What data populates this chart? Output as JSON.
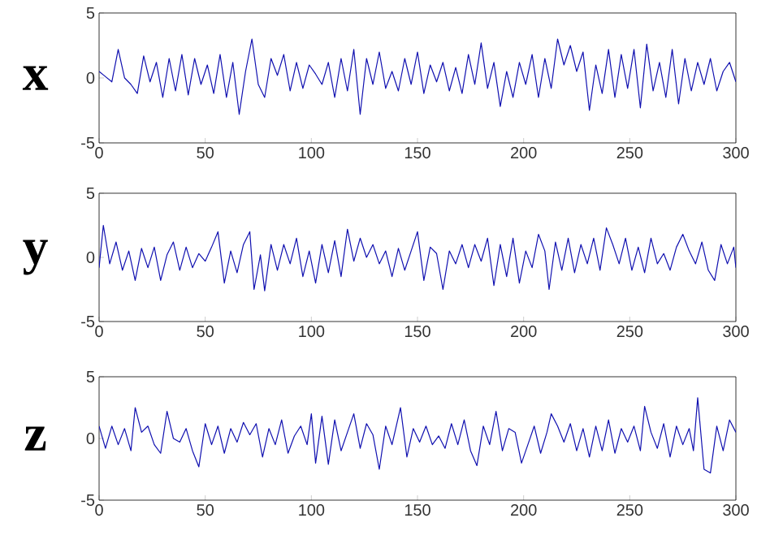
{
  "chart_data": [
    {
      "type": "line",
      "ylabel": "x",
      "color": "#1010b0",
      "xlim": [
        0,
        300
      ],
      "ylim": [
        -5,
        5
      ],
      "xticks": [
        0,
        50,
        100,
        150,
        200,
        250,
        300
      ],
      "yticks": [
        -5,
        0,
        5
      ],
      "x": [
        0,
        3,
        6,
        9,
        12,
        15,
        18,
        21,
        24,
        27,
        30,
        33,
        36,
        39,
        42,
        45,
        48,
        51,
        54,
        57,
        60,
        63,
        66,
        69,
        72,
        75,
        78,
        81,
        84,
        87,
        90,
        93,
        96,
        99,
        102,
        105,
        108,
        111,
        114,
        117,
        120,
        123,
        126,
        129,
        132,
        135,
        138,
        141,
        144,
        147,
        150,
        153,
        156,
        159,
        162,
        165,
        168,
        171,
        174,
        177,
        180,
        183,
        186,
        189,
        192,
        195,
        198,
        201,
        204,
        207,
        210,
        213,
        216,
        219,
        222,
        225,
        228,
        231,
        234,
        237,
        240,
        243,
        246,
        249,
        252,
        255,
        258,
        261,
        264,
        267,
        270,
        273,
        276,
        279,
        282,
        285,
        288,
        291,
        294,
        297,
        300
      ],
      "values": [
        0.5,
        0.1,
        -0.3,
        2.2,
        0,
        -0.5,
        -1.2,
        1.7,
        -0.3,
        1.2,
        -1.5,
        1.5,
        -1,
        1.8,
        -1.3,
        1.5,
        -0.5,
        1,
        -1.2,
        1.8,
        -1.5,
        1.2,
        -2.8,
        0.5,
        3,
        -0.5,
        -1.5,
        1.5,
        0.2,
        1.8,
        -1,
        1.2,
        -0.8,
        1,
        0.3,
        -0.5,
        1.2,
        -1.5,
        1.5,
        -1,
        2.2,
        -2.8,
        1.5,
        -0.5,
        2,
        -0.8,
        0.5,
        -1,
        1.5,
        -0.5,
        2,
        -1.2,
        1,
        -0.3,
        1.2,
        -1,
        0.8,
        -1.2,
        1.8,
        -0.5,
        2.7,
        -0.8,
        1.2,
        -2.2,
        0.5,
        -1.5,
        1.2,
        -0.5,
        1.8,
        -1.5,
        1.5,
        -0.8,
        3,
        1,
        2.5,
        0.5,
        2,
        -2.5,
        1,
        -1.2,
        2.2,
        -1.5,
        1.8,
        -0.8,
        2.2,
        -2.3,
        2.6,
        -1,
        1.2,
        -1.5,
        2.2,
        -2,
        1.5,
        -1,
        1.2,
        -0.5,
        1.5,
        -1,
        0.5,
        1.2,
        -0.3
      ]
    },
    {
      "type": "line",
      "ylabel": "y",
      "color": "#1010b0",
      "xlim": [
        0,
        300
      ],
      "ylim": [
        -5,
        5
      ],
      "xticks": [
        0,
        50,
        100,
        150,
        200,
        250,
        300
      ],
      "yticks": [
        -5,
        0,
        5
      ],
      "x": [
        0,
        2,
        5,
        8,
        11,
        14,
        17,
        20,
        23,
        26,
        29,
        32,
        35,
        38,
        41,
        44,
        47,
        50,
        53,
        56,
        59,
        62,
        65,
        68,
        71,
        73,
        76,
        78,
        81,
        84,
        87,
        90,
        93,
        96,
        99,
        102,
        105,
        108,
        111,
        114,
        117,
        120,
        123,
        126,
        129,
        132,
        135,
        138,
        141,
        144,
        147,
        150,
        153,
        156,
        159,
        162,
        165,
        168,
        171,
        174,
        177,
        180,
        183,
        186,
        189,
        192,
        195,
        198,
        201,
        204,
        207,
        210,
        212,
        215,
        218,
        221,
        224,
        227,
        230,
        233,
        236,
        239,
        242,
        245,
        248,
        251,
        254,
        257,
        260,
        263,
        266,
        269,
        272,
        275,
        278,
        281,
        284,
        287,
        290,
        293,
        296,
        299,
        300
      ],
      "values": [
        -0.8,
        2.5,
        -0.5,
        1.2,
        -1,
        0.5,
        -1.8,
        0.7,
        -0.8,
        0.8,
        -1.8,
        0.2,
        1.2,
        -1,
        0.8,
        -0.8,
        0.3,
        -0.3,
        0.8,
        2,
        -2,
        0.5,
        -1.2,
        1,
        2,
        -2.5,
        0.2,
        -2.6,
        1,
        -1,
        1,
        -0.5,
        1.5,
        -1.5,
        0.5,
        -2,
        1,
        -1.2,
        1.3,
        -1.5,
        2.2,
        -0.3,
        1.5,
        0,
        1,
        -0.5,
        0.5,
        -1.5,
        0.7,
        -1,
        0.5,
        2,
        -1.8,
        0.8,
        0.3,
        -2.5,
        0.5,
        -0.5,
        1,
        -0.8,
        1,
        -0.3,
        1.5,
        -2.2,
        1,
        -1.5,
        1.5,
        -2,
        0.5,
        -0.8,
        1.8,
        0.5,
        -2.5,
        1.2,
        -1,
        1.5,
        -1.2,
        1,
        -0.5,
        1.5,
        -1,
        2.3,
        1,
        -0.5,
        1.5,
        -1,
        0.8,
        -1.2,
        1.5,
        -0.5,
        0.3,
        -1,
        0.8,
        1.8,
        0.5,
        -0.5,
        1.2,
        -1,
        -1.8,
        1,
        -0.5,
        0.8,
        -0.8
      ]
    },
    {
      "type": "line",
      "ylabel": "z",
      "color": "#1010b0",
      "xlim": [
        0,
        300
      ],
      "ylim": [
        -5,
        5
      ],
      "xticks": [
        0,
        50,
        100,
        150,
        200,
        250,
        300
      ],
      "yticks": [
        -5,
        0,
        5
      ],
      "x": [
        0,
        3,
        6,
        9,
        12,
        15,
        17,
        20,
        23,
        26,
        29,
        32,
        35,
        38,
        41,
        44,
        47,
        50,
        53,
        56,
        59,
        62,
        65,
        68,
        71,
        74,
        77,
        80,
        83,
        86,
        89,
        92,
        95,
        98,
        100,
        102,
        105,
        108,
        111,
        114,
        117,
        120,
        123,
        126,
        129,
        132,
        135,
        138,
        142,
        145,
        148,
        151,
        154,
        157,
        160,
        163,
        166,
        169,
        172,
        175,
        178,
        181,
        184,
        187,
        190,
        193,
        196,
        199,
        202,
        205,
        208,
        211,
        213,
        216,
        219,
        222,
        225,
        228,
        231,
        234,
        237,
        240,
        243,
        246,
        249,
        252,
        255,
        257,
        260,
        263,
        266,
        269,
        272,
        275,
        278,
        280,
        282,
        285,
        288,
        291,
        294,
        297,
        300
      ],
      "values": [
        1,
        -0.8,
        1,
        -0.5,
        0.8,
        -1,
        2.5,
        0.5,
        1,
        -0.5,
        -1.2,
        2.2,
        0,
        -0.3,
        0.8,
        -1,
        -2.3,
        1.2,
        -0.5,
        1,
        -1.2,
        0.8,
        -0.3,
        1.3,
        0.3,
        1.2,
        -1.5,
        0.8,
        -0.5,
        1.5,
        -1.2,
        0.2,
        1,
        -0.5,
        2,
        -2,
        1.8,
        -2.1,
        1.5,
        -1,
        0.5,
        2,
        -0.8,
        1.2,
        0.3,
        -2.5,
        1,
        -0.5,
        2.5,
        -1.5,
        0.8,
        -0.3,
        1,
        -0.5,
        0.2,
        -0.8,
        1.2,
        -0.5,
        1.5,
        -1,
        -2.2,
        1,
        -0.5,
        2.2,
        -1,
        0.8,
        0.5,
        -2,
        -0.5,
        1,
        -1.2,
        0.5,
        2,
        1,
        -0.3,
        1.2,
        -1,
        0.8,
        -1.5,
        1,
        -1,
        1.5,
        -1.2,
        0.8,
        -0.3,
        1,
        -1,
        2.6,
        0.5,
        -0.8,
        1.2,
        -1.5,
        1,
        -0.5,
        0.8,
        -1,
        3.3,
        -2.5,
        -2.8,
        1,
        -1,
        1.5,
        0.5
      ]
    }
  ]
}
